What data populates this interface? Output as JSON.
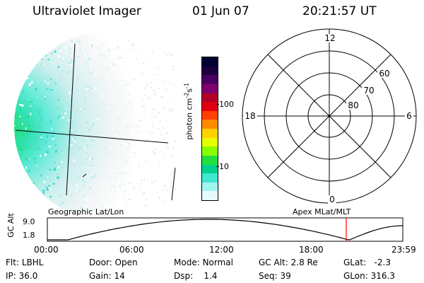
{
  "header": {
    "title": "Ultraviolet Imager",
    "date": "01 Jun 07",
    "time": "20:21:57 UT"
  },
  "colorbar": {
    "label": "photon cm",
    "label_exp1": "-2",
    "label_mid": "s",
    "label_exp2": "-1",
    "tick_100": "100",
    "tick_10": "10",
    "colors": [
      "#000033",
      "#1a0040",
      "#4a0060",
      "#80006a",
      "#b0002a",
      "#e00010",
      "#ff4000",
      "#ff8a00",
      "#ffd200",
      "#e6ff00",
      "#88ff00",
      "#20e040",
      "#00d090",
      "#40e8d0",
      "#a0f4ee",
      "#e6fafa"
    ]
  },
  "polar": {
    "label_12": "12",
    "label_18": "18",
    "label_6": "6",
    "label_0": "0",
    "label_60": "60",
    "label_70": "70",
    "label_80": "80"
  },
  "strip": {
    "left_title": "Geographic Lat/Lon",
    "right_title": "Apex MLat/MLT",
    "y_label": "GC Alt",
    "y_top": "9.0",
    "y_bottom": "1.8",
    "x_ticks": [
      "00:00",
      "06:00",
      "12:00",
      "18:00",
      "23:59"
    ],
    "current_color": "#ff0000"
  },
  "info": {
    "flt_label": "Flt:",
    "flt_value": "LBHL",
    "ip_label": "IP:",
    "ip_value": "36.0",
    "door_label": "Door:",
    "door_value": "Open",
    "gain_label": "Gain:",
    "gain_value": "14",
    "mode_label": "Mode:",
    "mode_value": "Normal",
    "dsp_label": "Dsp:",
    "dsp_value": "1.4",
    "gcalt_label": "GC Alt:",
    "gcalt_value": "2.8 Re",
    "seq_label": "Seq:",
    "seq_value": "39",
    "glat_label": "GLat:",
    "glat_value": "-2.3",
    "glon_label": "GLon:",
    "glon_value": "316.3"
  }
}
